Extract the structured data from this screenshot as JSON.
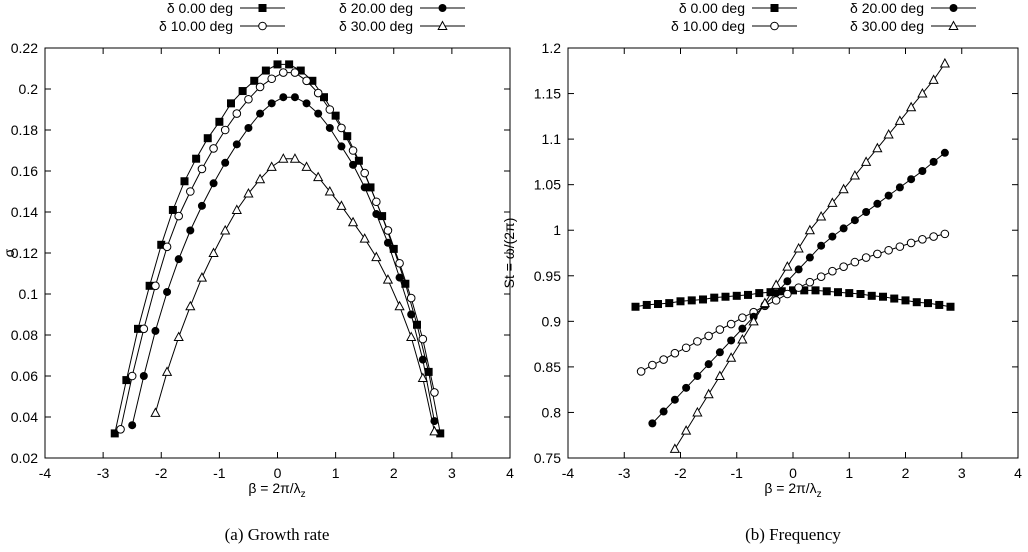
{
  "captions": [
    "(a) Growth rate",
    "(b) Frequency"
  ],
  "legend": [
    "δ 0.00 deg",
    "δ 10.00 deg",
    "δ 20.00 deg",
    "δ 30.00 deg"
  ],
  "chart_data": [
    {
      "type": "line",
      "caption": "(a) Growth rate",
      "xlabel": "β = 2π/λ",
      "xlabel_sub": "z",
      "ylabel": "σ",
      "xlim": [
        -4,
        4
      ],
      "ylim": [
        0.02,
        0.22
      ],
      "xticks": [
        "-4",
        "-3",
        "-2",
        "-1",
        "0",
        "1",
        "2",
        "3",
        "4"
      ],
      "yticks": [
        "0.02",
        "0.04",
        "0.06",
        "0.08",
        "0.1",
        "0.12",
        "0.14",
        "0.16",
        "0.18",
        "0.2",
        "0.22"
      ],
      "grid": false,
      "legend_position": "top-outside",
      "series": [
        {
          "name": "δ 0.00 deg",
          "marker": "square-filled",
          "x": [
            -2.8,
            -2.6,
            -2.4,
            -2.2,
            -2.0,
            -1.8,
            -1.6,
            -1.4,
            -1.2,
            -1.0,
            -0.8,
            -0.6,
            -0.4,
            -0.2,
            0.0,
            0.2,
            0.4,
            0.6,
            0.8,
            1.0,
            1.2,
            1.4,
            1.6,
            1.8,
            2.0,
            2.2,
            2.4,
            2.6,
            2.8
          ],
          "y": [
            0.032,
            0.058,
            0.083,
            0.104,
            0.124,
            0.141,
            0.155,
            0.166,
            0.176,
            0.184,
            0.193,
            0.199,
            0.204,
            0.209,
            0.212,
            0.212,
            0.209,
            0.204,
            0.196,
            0.187,
            0.177,
            0.165,
            0.152,
            0.138,
            0.122,
            0.105,
            0.085,
            0.062,
            0.032
          ]
        },
        {
          "name": "δ 10.00 deg",
          "marker": "circle-open",
          "x": [
            -2.7,
            -2.5,
            -2.3,
            -2.1,
            -1.9,
            -1.7,
            -1.5,
            -1.3,
            -1.1,
            -0.9,
            -0.7,
            -0.5,
            -0.3,
            -0.1,
            0.1,
            0.3,
            0.5,
            0.7,
            0.9,
            1.1,
            1.3,
            1.5,
            1.7,
            1.9,
            2.1,
            2.3,
            2.5,
            2.7
          ],
          "y": [
            0.034,
            0.06,
            0.083,
            0.104,
            0.123,
            0.138,
            0.15,
            0.161,
            0.171,
            0.18,
            0.188,
            0.195,
            0.201,
            0.205,
            0.208,
            0.208,
            0.204,
            0.198,
            0.19,
            0.181,
            0.17,
            0.159,
            0.145,
            0.131,
            0.115,
            0.098,
            0.078,
            0.052
          ]
        },
        {
          "name": "δ 20.00 deg",
          "marker": "circle-filled",
          "x": [
            -2.5,
            -2.3,
            -2.1,
            -1.9,
            -1.7,
            -1.5,
            -1.3,
            -1.1,
            -0.9,
            -0.7,
            -0.5,
            -0.3,
            -0.1,
            0.1,
            0.3,
            0.5,
            0.7,
            0.9,
            1.1,
            1.3,
            1.5,
            1.7,
            1.9,
            2.1,
            2.3,
            2.5,
            2.7
          ],
          "y": [
            0.036,
            0.06,
            0.082,
            0.101,
            0.117,
            0.131,
            0.143,
            0.154,
            0.164,
            0.173,
            0.181,
            0.188,
            0.193,
            0.196,
            0.196,
            0.193,
            0.188,
            0.181,
            0.172,
            0.163,
            0.152,
            0.139,
            0.125,
            0.108,
            0.09,
            0.068,
            0.038
          ]
        },
        {
          "name": "δ 30.00 deg",
          "marker": "triangle-open",
          "x": [
            -2.1,
            -1.9,
            -1.7,
            -1.5,
            -1.3,
            -1.1,
            -0.9,
            -0.7,
            -0.5,
            -0.3,
            -0.1,
            0.1,
            0.3,
            0.5,
            0.7,
            0.9,
            1.1,
            1.3,
            1.5,
            1.7,
            1.9,
            2.1,
            2.3,
            2.5,
            2.7
          ],
          "y": [
            0.042,
            0.062,
            0.079,
            0.094,
            0.108,
            0.12,
            0.131,
            0.141,
            0.149,
            0.156,
            0.162,
            0.166,
            0.166,
            0.162,
            0.157,
            0.15,
            0.143,
            0.135,
            0.127,
            0.118,
            0.107,
            0.094,
            0.079,
            0.059,
            0.033
          ]
        }
      ]
    },
    {
      "type": "line",
      "caption": "(b) Frequency",
      "xlabel": "β = 2π/λ",
      "xlabel_sub": "z",
      "ylabel": "St = ω/(2π)",
      "xlim": [
        -4,
        4
      ],
      "ylim": [
        0.75,
        1.2
      ],
      "xticks": [
        "-4",
        "-3",
        "-2",
        "-1",
        "0",
        "1",
        "2",
        "3",
        "4"
      ],
      "yticks": [
        "0.75",
        "0.8",
        "0.85",
        "0.9",
        "0.95",
        "1",
        "1.05",
        "1.1",
        "1.15",
        "1.2"
      ],
      "grid": false,
      "legend_position": "top-outside",
      "series": [
        {
          "name": "δ 0.00 deg",
          "marker": "square-filled",
          "x": [
            -2.8,
            -2.6,
            -2.4,
            -2.2,
            -2.0,
            -1.8,
            -1.6,
            -1.4,
            -1.2,
            -1.0,
            -0.8,
            -0.6,
            -0.4,
            -0.2,
            0.0,
            0.2,
            0.4,
            0.6,
            0.8,
            1.0,
            1.2,
            1.4,
            1.6,
            1.8,
            2.0,
            2.2,
            2.4,
            2.6,
            2.8
          ],
          "y": [
            0.916,
            0.918,
            0.919,
            0.92,
            0.922,
            0.923,
            0.924,
            0.926,
            0.927,
            0.928,
            0.929,
            0.931,
            0.932,
            0.933,
            0.934,
            0.934,
            0.934,
            0.933,
            0.932,
            0.931,
            0.93,
            0.928,
            0.927,
            0.925,
            0.923,
            0.921,
            0.92,
            0.918,
            0.916
          ]
        },
        {
          "name": "δ 10.00 deg",
          "marker": "circle-open",
          "x": [
            -2.7,
            -2.5,
            -2.3,
            -2.1,
            -1.9,
            -1.7,
            -1.5,
            -1.3,
            -1.1,
            -0.9,
            -0.7,
            -0.5,
            -0.3,
            -0.1,
            0.1,
            0.3,
            0.5,
            0.7,
            0.9,
            1.1,
            1.3,
            1.5,
            1.7,
            1.9,
            2.1,
            2.3,
            2.5,
            2.7
          ],
          "y": [
            0.845,
            0.852,
            0.858,
            0.865,
            0.871,
            0.878,
            0.884,
            0.891,
            0.897,
            0.904,
            0.91,
            0.917,
            0.923,
            0.93,
            0.937,
            0.943,
            0.949,
            0.955,
            0.96,
            0.965,
            0.97,
            0.974,
            0.978,
            0.982,
            0.986,
            0.99,
            0.993,
            0.996
          ]
        },
        {
          "name": "δ 20.00 deg",
          "marker": "circle-filled",
          "x": [
            -2.5,
            -2.3,
            -2.1,
            -1.9,
            -1.7,
            -1.5,
            -1.3,
            -1.1,
            -0.9,
            -0.7,
            -0.5,
            -0.3,
            -0.1,
            0.1,
            0.3,
            0.5,
            0.7,
            0.9,
            1.1,
            1.3,
            1.5,
            1.7,
            1.9,
            2.1,
            2.3,
            2.5,
            2.7
          ],
          "y": [
            0.788,
            0.801,
            0.814,
            0.827,
            0.84,
            0.853,
            0.866,
            0.879,
            0.892,
            0.905,
            0.918,
            0.931,
            0.944,
            0.957,
            0.97,
            0.983,
            0.993,
            1.002,
            1.011,
            1.02,
            1.029,
            1.038,
            1.047,
            1.056,
            1.065,
            1.075,
            1.085
          ]
        },
        {
          "name": "δ 30.00 deg",
          "marker": "triangle-open",
          "x": [
            -2.1,
            -1.9,
            -1.7,
            -1.5,
            -1.3,
            -1.1,
            -0.9,
            -0.7,
            -0.5,
            -0.3,
            -0.1,
            0.1,
            0.3,
            0.5,
            0.7,
            0.9,
            1.1,
            1.3,
            1.5,
            1.7,
            1.9,
            2.1,
            2.3,
            2.5,
            2.7
          ],
          "y": [
            0.76,
            0.78,
            0.8,
            0.82,
            0.84,
            0.86,
            0.88,
            0.9,
            0.92,
            0.94,
            0.96,
            0.98,
            1.0,
            1.015,
            1.03,
            1.045,
            1.06,
            1.075,
            1.09,
            1.105,
            1.12,
            1.135,
            1.15,
            1.165,
            1.183
          ]
        }
      ]
    }
  ]
}
